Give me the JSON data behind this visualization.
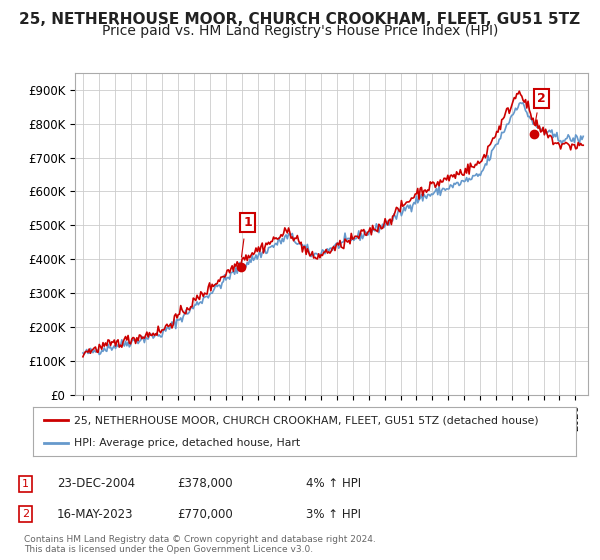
{
  "title": "25, NETHERHOUSE MOOR, CHURCH CROOKHAM, FLEET, GU51 5TZ",
  "subtitle": "Price paid vs. HM Land Registry's House Price Index (HPI)",
  "ylim": [
    0,
    950000
  ],
  "yticks": [
    0,
    100000,
    200000,
    300000,
    400000,
    500000,
    600000,
    700000,
    800000,
    900000
  ],
  "ytick_labels": [
    "£0",
    "£100K",
    "£200K",
    "£300K",
    "£400K",
    "£500K",
    "£600K",
    "£700K",
    "£800K",
    "£900K"
  ],
  "legend_entries": [
    "25, NETHERHOUSE MOOR, CHURCH CROOKHAM, FLEET, GU51 5TZ (detached house)",
    "HPI: Average price, detached house, Hart"
  ],
  "annotation1": {
    "label": "1",
    "date": "23-DEC-2004",
    "price": "£378,000",
    "hpi": "4% ↑ HPI"
  },
  "annotation2": {
    "label": "2",
    "date": "16-MAY-2023",
    "price": "£770,000",
    "hpi": "3% ↑ HPI"
  },
  "footer": "Contains HM Land Registry data © Crown copyright and database right 2024.\nThis data is licensed under the Open Government Licence v3.0.",
  "price_paid_color": "#cc0000",
  "hpi_color": "#6699cc",
  "grid_color": "#cccccc",
  "background_color": "#ffffff",
  "annotation_box_color": "#cc0000",
  "title_fontsize": 11,
  "subtitle_fontsize": 10
}
